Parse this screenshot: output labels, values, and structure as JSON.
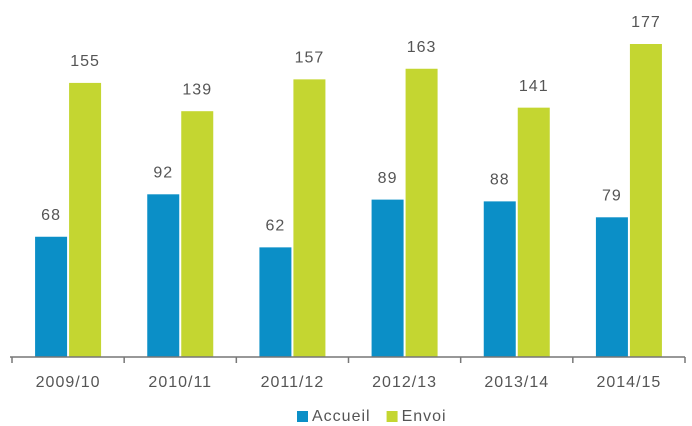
{
  "chart_data": {
    "type": "bar",
    "categories": [
      "2009/10",
      "2010/11",
      "2011/12",
      "2012/13",
      "2013/14",
      "2014/15"
    ],
    "series": [
      {
        "name": "Accueil",
        "color": "#0b8fc7",
        "values": [
          68,
          92,
          62,
          89,
          88,
          79
        ]
      },
      {
        "name": "Envoi",
        "color": "#c4d631",
        "values": [
          155,
          139,
          157,
          163,
          141,
          177
        ]
      }
    ]
  }
}
